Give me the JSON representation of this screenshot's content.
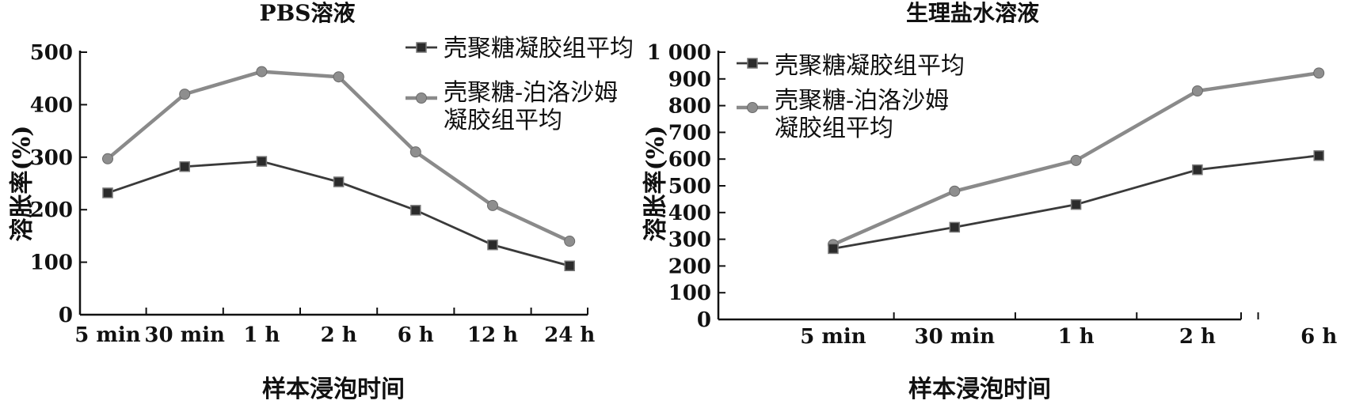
{
  "chart_data": [
    {
      "type": "line",
      "title": "PBS溶液",
      "xlabel": "样本浸泡时间",
      "ylabel": "溶胀率(%)",
      "categories": [
        "5 min",
        "30 min",
        "1 h",
        "2 h",
        "6 h",
        "12 h",
        "24 h"
      ],
      "ylim": [
        0,
        500
      ],
      "yticks": [
        "0",
        "100",
        "200",
        "300",
        "400",
        "500"
      ],
      "legend_position": "top-right",
      "grid": false,
      "series": [
        {
          "name": "壳聚糖凝胶组平均",
          "marker": "square",
          "color": "#3a3a3a",
          "values": [
            232,
            282,
            292,
            253,
            199,
            133,
            93
          ]
        },
        {
          "name": "壳聚糖-泊洛沙姆凝胶组平均",
          "marker": "circle",
          "color": "#8a8a8a",
          "values": [
            297,
            420,
            463,
            453,
            310,
            208,
            140
          ]
        }
      ]
    },
    {
      "type": "line",
      "title": "生理盐水溶液",
      "xlabel": "样本浸泡时间",
      "ylabel": "溶胀率(%)",
      "categories": [
        "5 min",
        "30 min",
        "1 h",
        "2 h",
        "6 h"
      ],
      "ylim": [
        0,
        1000
      ],
      "yticks": [
        "0",
        "100",
        "200",
        "300",
        "400",
        "500",
        "600",
        "700",
        "800",
        "900",
        "1 000"
      ],
      "legend_position": "top-left",
      "grid": false,
      "series": [
        {
          "name": "壳聚糖凝胶组平均",
          "marker": "square",
          "color": "#3a3a3a",
          "values": [
            265,
            345,
            430,
            560,
            613
          ]
        },
        {
          "name": "壳聚糖-泊洛沙姆凝胶组平均",
          "marker": "circle",
          "color": "#8a8a8a",
          "values": [
            280,
            480,
            595,
            855,
            922
          ]
        }
      ]
    }
  ]
}
